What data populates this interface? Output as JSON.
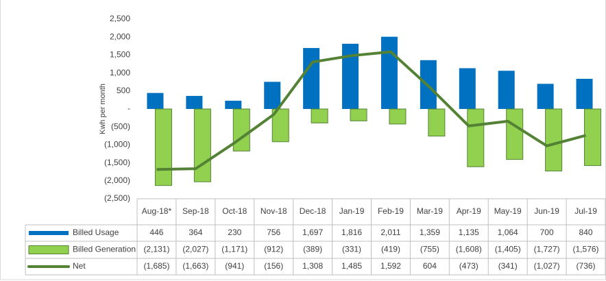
{
  "chart_data": {
    "type": "bar-line-table",
    "y_label": "Kwh per month",
    "categories": [
      "Aug-18*",
      "Sep-18",
      "Oct-18",
      "Nov-18",
      "Dec-18",
      "Jan-19",
      "Feb-19",
      "Mar-19",
      "Apr-19",
      "May-19",
      "Jun-19",
      "Jul-19"
    ],
    "series": [
      {
        "name": "Billed Usage",
        "type": "bar",
        "color": "#0070c0",
        "values": [
          446,
          364,
          230,
          756,
          1697,
          1816,
          2011,
          1359,
          1135,
          1064,
          700,
          840
        ],
        "value_labels": [
          "446",
          "364",
          "230",
          "756",
          "1,697",
          "1,816",
          "2,011",
          "1,359",
          "1,135",
          "1,064",
          "700",
          "840"
        ]
      },
      {
        "name": "Billed Generation",
        "type": "bar",
        "color": "#92d050",
        "edge_color": "#548235",
        "values": [
          -2131,
          -2027,
          -1171,
          -912,
          -389,
          -331,
          -419,
          -755,
          -1608,
          -1405,
          -1727,
          -1576
        ],
        "value_labels": [
          "(2,131)",
          "(2,027)",
          "(1,171)",
          "(912)",
          "(389)",
          "(331)",
          "(419)",
          "(755)",
          "(1,608)",
          "(1,405)",
          "(1,727)",
          "(1,576)"
        ]
      },
      {
        "name": "Net",
        "type": "line",
        "color": "#548235",
        "values": [
          -1685,
          -1663,
          -941,
          -156,
          1308,
          1485,
          1592,
          604,
          -473,
          -341,
          -1027,
          -736
        ],
        "value_labels": [
          "(1,685)",
          "(1,663)",
          "(941)",
          "(156)",
          "1,308",
          "1,485",
          "1,592",
          "604",
          "(473)",
          "(341)",
          "(1,027)",
          "(736)"
        ]
      }
    ],
    "ylim": [
      -2500,
      2500
    ],
    "yticks": [
      {
        "value": 2500,
        "label": "2,500"
      },
      {
        "value": 2000,
        "label": "2,000"
      },
      {
        "value": 1500,
        "label": "1,500"
      },
      {
        "value": 1000,
        "label": "1,000"
      },
      500,
      {
        "value": 0,
        "label": "-"
      },
      {
        "value": -500,
        "label": "(500)"
      },
      {
        "value": -1000,
        "label": "(1,000)"
      },
      {
        "value": -1500,
        "label": "(1,500)"
      },
      {
        "value": -2000,
        "label": "(2,000)"
      },
      {
        "value": -2500,
        "label": "(2,500)"
      }
    ]
  }
}
